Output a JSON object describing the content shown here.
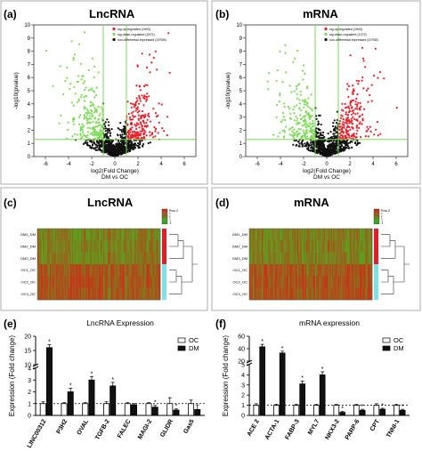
{
  "panels": {
    "a": {
      "letter": "(a)",
      "title": "LncRNA"
    },
    "b": {
      "letter": "(b)",
      "title": "mRNA"
    },
    "c": {
      "letter": "(c)",
      "title": "LncRNA"
    },
    "d": {
      "letter": "(d)",
      "title": "mRNA"
    },
    "e": {
      "letter": "(e)"
    },
    "f": {
      "letter": "(f)"
    }
  },
  "colors": {
    "up": "#e8202a",
    "down": "#7ed957",
    "ns": "#111111",
    "oc_bar": "#ffffff",
    "dm_bar": "#111111",
    "heat_green": "#6fae1e",
    "heat_red": "#a6391b",
    "dm_side": "#e01e26",
    "oc_side": "#7fe0e6"
  },
  "chart_data": [
    {
      "type": "scatter",
      "panel": "a",
      "title": "LncRNA",
      "xlabel": "log2(Fold Change)",
      "xlabel2": "DM vs OC",
      "ylabel": "-log10(pvalue)",
      "xlim": [
        -7,
        7
      ],
      "ylim": [
        0,
        10
      ],
      "xticks": [
        "-6",
        "-4",
        "-2",
        "0",
        "2",
        "4",
        "6"
      ],
      "yticks": [
        "0",
        "1",
        "2",
        "3",
        "4",
        "5",
        "6",
        "7",
        "8",
        "9",
        "10"
      ],
      "legend": [
        "sig up-regulated (1593)",
        "sig down-regulated (1872)",
        "non-differential expressed (29765)"
      ],
      "legend_position": "top-right",
      "thresholds": {
        "fc": [
          -1,
          1
        ],
        "p": 1.3
      }
    },
    {
      "type": "scatter",
      "panel": "b",
      "title": "mRNA",
      "xlabel": "log2(Fold Change)",
      "xlabel2": "DM vs OC",
      "ylabel": "-log10(pvalue)",
      "xlim": [
        -7,
        7
      ],
      "ylim": [
        0,
        10
      ],
      "xticks": [
        "-6",
        "-4",
        "-2",
        "0",
        "2",
        "4",
        "6"
      ],
      "yticks": [
        "0",
        "1",
        "2",
        "3",
        "4",
        "5",
        "6",
        "7",
        "8",
        "9",
        "10"
      ],
      "legend": [
        "sig up-regulated (1593)",
        "sig down-regulated (1372)",
        "non-differential expressed (20765)"
      ],
      "legend_position": "top-right",
      "thresholds": {
        "fc": [
          -1,
          1
        ],
        "p": 1.3
      }
    },
    {
      "type": "heatmap",
      "panel": "c",
      "title": "LncRNA",
      "rows": [
        "DM1_DM",
        "DM2_DM",
        "DM3_DM",
        "OC1_OC",
        "OC2_OC",
        "OC3_OC"
      ],
      "legend": "Row Z",
      "colorbar_ticks": [
        "4",
        "2",
        "0",
        "-2",
        "-4"
      ]
    },
    {
      "type": "heatmap",
      "panel": "d",
      "title": "mRNA",
      "rows": [
        "DM1_DM",
        "DM2_DM",
        "DM3_DM",
        "OC1_OC",
        "OC2_OC",
        "OC3_OC"
      ],
      "legend": "Row Z",
      "colorbar_ticks": [
        "4",
        "2",
        "0",
        "-2",
        "-4"
      ]
    },
    {
      "type": "bar",
      "panel": "e",
      "title": "LncRNA Expression",
      "ylabel": "Expression (Fold change)",
      "categories": [
        "LINC00312",
        "P3H2",
        "OVAL",
        "TGFB-2",
        "FALEC",
        "MAGI-2",
        "GLIDR",
        "Gas5"
      ],
      "series": [
        {
          "name": "OC",
          "values": [
            1,
            1,
            1,
            1,
            1,
            1,
            1,
            1
          ]
        },
        {
          "name": "DM",
          "values": [
            16,
            2.0,
            3.0,
            2.5,
            0.9,
            0.7,
            0.45,
            0.5
          ]
        }
      ],
      "errors": {
        "OC": [
          0.15,
          0.1,
          0.1,
          0.15,
          0.1,
          0.1,
          0.5,
          0.3
        ],
        "DM": [
          1.0,
          0.3,
          0.3,
          0.3,
          0.1,
          0.15,
          0.1,
          0.4
        ]
      },
      "significance": [
        "*",
        "*",
        "*",
        "*",
        "",
        "*",
        "*",
        ""
      ],
      "yticks": [
        "0",
        "1",
        "2",
        "3",
        "4",
        "10",
        "15",
        "20"
      ],
      "ylim_lower": [
        0,
        4
      ],
      "ylim_upper": [
        10,
        20
      ],
      "reference_line": 1,
      "legend_position": "top-right"
    },
    {
      "type": "bar",
      "panel": "f",
      "title": "mRNA expression",
      "ylabel": "Expression (Fold change)",
      "categories": [
        "ACE 2",
        "ACTA-1",
        "FABP-3",
        "MYL7",
        "NKX3-2",
        "PARP-6",
        "CPT",
        "TNNI-1"
      ],
      "series": [
        {
          "name": "OC",
          "values": [
            1,
            1,
            1,
            1,
            1,
            1,
            1,
            1
          ]
        },
        {
          "name": "DM",
          "values": [
            43,
            33,
            3.1,
            4.0,
            0.3,
            0.5,
            0.6,
            0.5
          ]
        }
      ],
      "errors": {
        "OC": [
          0.15,
          0.1,
          0.1,
          0.1,
          0.1,
          0.1,
          0.15,
          0.1
        ],
        "DM": [
          4,
          3,
          0.3,
          0.3,
          0.1,
          0.1,
          0.1,
          0.1
        ]
      },
      "significance": [
        "*",
        "*",
        "*",
        "*",
        "*",
        "*",
        "*",
        "*"
      ],
      "yticks": [
        "0",
        "1",
        "2",
        "3",
        "4",
        "5",
        "20",
        "40",
        "60"
      ],
      "ylim_lower": [
        0,
        5
      ],
      "ylim_upper": [
        20,
        60
      ],
      "reference_line": 1,
      "legend_position": "top-right"
    }
  ]
}
